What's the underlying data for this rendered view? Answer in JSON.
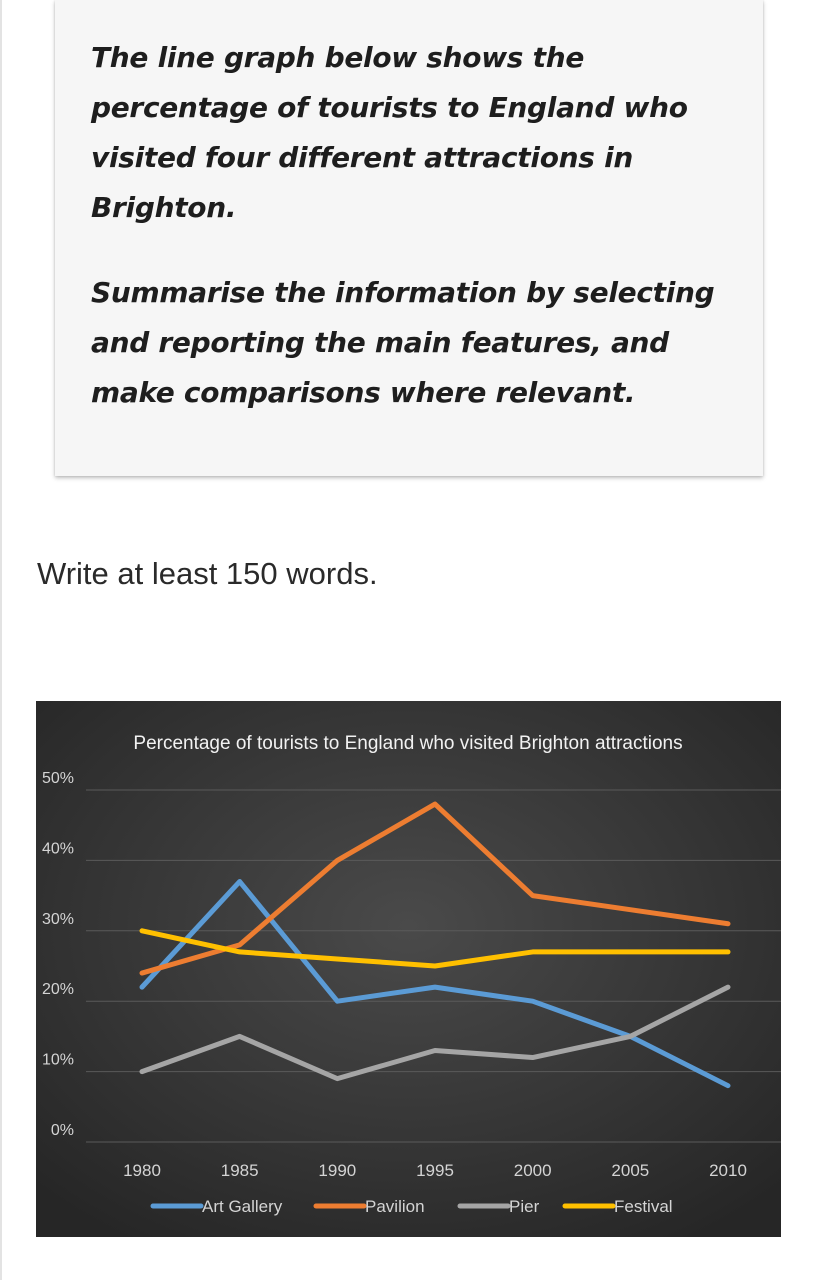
{
  "prompt": {
    "paragraph_1": "The line graph below shows the percentage of tourists to England who visited four different attractions in Brighton.",
    "paragraph_2": "Summarise the information by selecting and reporting the main features, and make comparisons where relevant."
  },
  "instruction": "Write at least 150 words.",
  "colors": {
    "chart_background": "#3a3a3a",
    "gridline": "#5a5a5a",
    "tick_text": "#d4d4d4",
    "title_text": "#f2f2f2"
  },
  "chart_data": {
    "type": "line",
    "title": "Percentage of tourists to England who visited Brighton attractions",
    "x": [
      "1980",
      "1985",
      "1990",
      "1995",
      "2000",
      "2005",
      "2010"
    ],
    "y_ticks": [
      "0%",
      "10%",
      "20%",
      "30%",
      "40%",
      "50%"
    ],
    "ylim": [
      0,
      50
    ],
    "grid": true,
    "legend_position": "bottom",
    "series": [
      {
        "name": "Art Gallery",
        "color": "#5b9bd5",
        "values": [
          22,
          37,
          20,
          22,
          20,
          15,
          8
        ]
      },
      {
        "name": "Pavilion",
        "color": "#ed7d31",
        "values": [
          24,
          28,
          40,
          48,
          35,
          33,
          31
        ]
      },
      {
        "name": "Pier",
        "color": "#a5a5a5",
        "values": [
          10,
          15,
          9,
          13,
          12,
          15,
          22
        ]
      },
      {
        "name": "Festival",
        "color": "#ffc000",
        "values": [
          30,
          27,
          26,
          25,
          27,
          27,
          27
        ]
      }
    ]
  }
}
